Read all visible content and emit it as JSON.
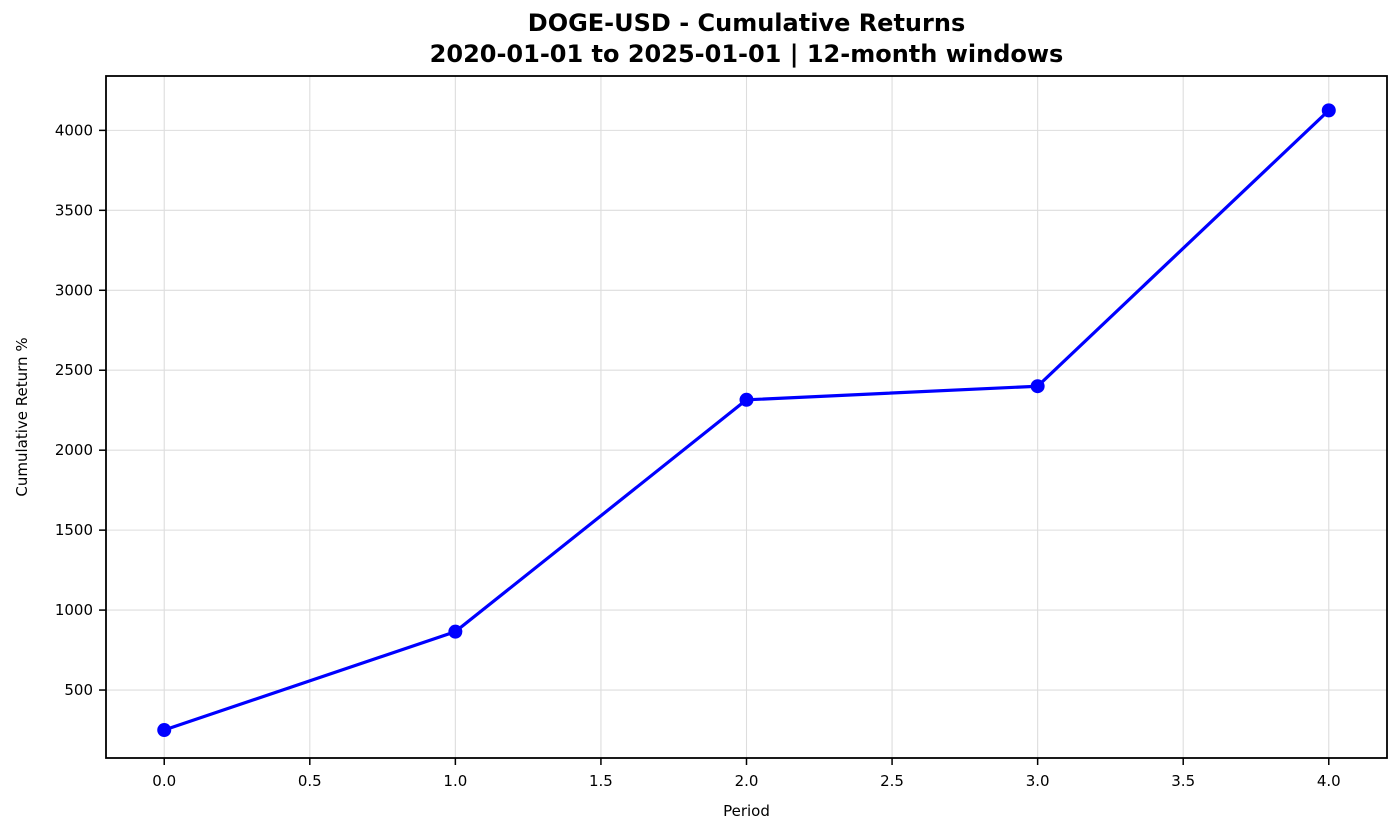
{
  "chart_data": {
    "type": "line",
    "title": "DOGE-USD - Cumulative Returns",
    "subtitle": "2020-01-01 to 2025-01-01 | 12-month windows",
    "xlabel": "Period",
    "ylabel": "Cumulative Return %",
    "x": [
      0,
      1,
      2,
      3,
      4
    ],
    "series": [
      {
        "name": "Cumulative Return %",
        "values": [
          250,
          865,
          2315,
          2400,
          4125
        ]
      }
    ],
    "xticks": [
      0.0,
      0.5,
      1.0,
      1.5,
      2.0,
      2.5,
      3.0,
      3.5,
      4.0
    ],
    "xtick_labels": [
      "0.0",
      "0.5",
      "1.0",
      "1.5",
      "2.0",
      "2.5",
      "3.0",
      "3.5",
      "4.0"
    ],
    "yticks": [
      500,
      1000,
      1500,
      2000,
      2500,
      3000,
      3500,
      4000
    ],
    "ytick_labels": [
      "500",
      "1000",
      "1500",
      "2000",
      "2500",
      "3000",
      "3500",
      "4000"
    ],
    "xlim": [
      -0.2,
      4.2
    ],
    "ylim": [
      75,
      4340
    ],
    "grid": true,
    "legend_position": "none",
    "line_color": "#0000FF",
    "marker": "o",
    "grid_color": "#DDDDDD",
    "spine_color": "#000000",
    "tick_color": "#000000",
    "background_color": "#FFFFFF"
  }
}
